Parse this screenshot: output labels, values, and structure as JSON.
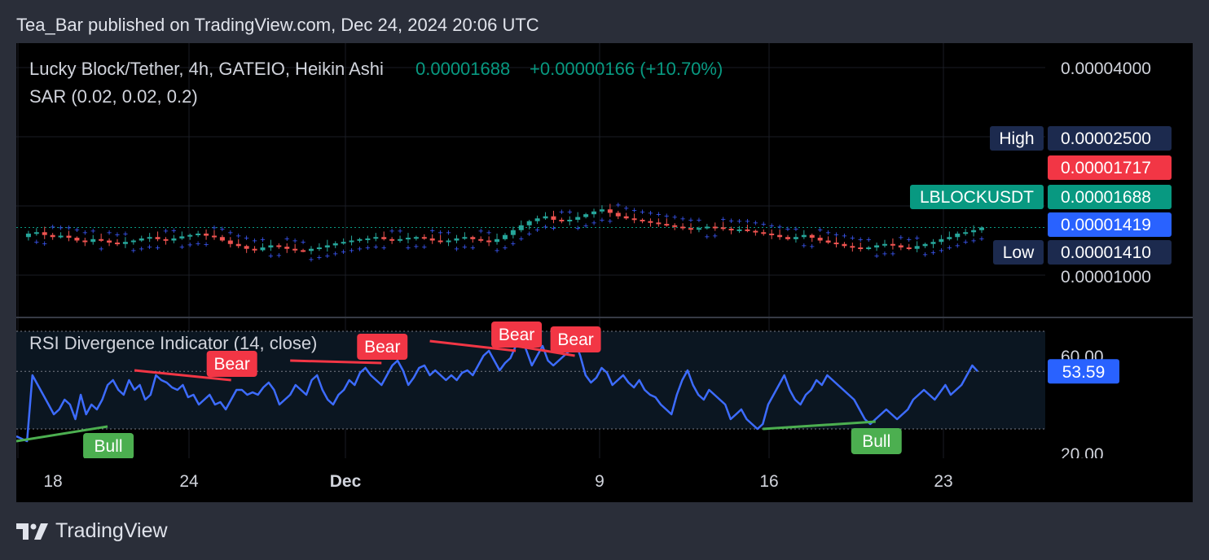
{
  "header": {
    "published": "Tea_Bar published on TradingView.com, Dec 24, 2024 20:06 UTC"
  },
  "footer": {
    "brand": "TradingView",
    "logo_icon": "tradingview-logo-icon"
  },
  "colors": {
    "up": "#26a69a",
    "down": "#ef5350",
    "sar": "#3d5afe",
    "rsi": "#3d6cff",
    "bull": "#4caf50",
    "bear": "#f23645",
    "navy": "#1c2a4e",
    "blue": "#2962ff",
    "teal": "#089981"
  },
  "chart_data": [
    {
      "type": "candlestick",
      "title": "Lucky Block/Tether, 4h, GATEIO, Heikin Ashi",
      "last_price": "0.00001688",
      "change": "+0.00000166 (+10.70%)",
      "indicator": "SAR (0.02, 0.02, 0.2)",
      "x_ticks": [
        "18",
        "24",
        "Dec",
        "9",
        "16",
        "23"
      ],
      "y_ticks": [
        "0.00004000",
        "0.00001000"
      ],
      "price_labels": [
        {
          "tag": "High",
          "value": "0.00002500"
        },
        {
          "tag": "",
          "value": "0.00001717"
        },
        {
          "tag": "LBLOCKUSDT",
          "value": "0.00001688"
        },
        {
          "tag": "",
          "value": "0.00001419"
        },
        {
          "tag": "Low",
          "value": "0.00001410"
        }
      ],
      "close_series": [
        1.55,
        1.6,
        1.62,
        1.58,
        1.55,
        1.57,
        1.54,
        1.5,
        1.48,
        1.52,
        1.5,
        1.47,
        1.45,
        1.48,
        1.5,
        1.53,
        1.55,
        1.52,
        1.5,
        1.53,
        1.56,
        1.58,
        1.6,
        1.57,
        1.55,
        1.5,
        1.45,
        1.42,
        1.38,
        1.36,
        1.4,
        1.43,
        1.41,
        1.38,
        1.36,
        1.35,
        1.38,
        1.4,
        1.43,
        1.46,
        1.48,
        1.5,
        1.52,
        1.53,
        1.55,
        1.52,
        1.5,
        1.52,
        1.54,
        1.55,
        1.53,
        1.5,
        1.48,
        1.5,
        1.53,
        1.55,
        1.52,
        1.5,
        1.48,
        1.52,
        1.58,
        1.65,
        1.72,
        1.78,
        1.82,
        1.85,
        1.8,
        1.78,
        1.8,
        1.84,
        1.88,
        1.92,
        1.95,
        1.9,
        1.85,
        1.82,
        1.8,
        1.78,
        1.76,
        1.74,
        1.72,
        1.7,
        1.68,
        1.66,
        1.68,
        1.7,
        1.69,
        1.67,
        1.65,
        1.66,
        1.64,
        1.62,
        1.6,
        1.58,
        1.55,
        1.52,
        1.55,
        1.58,
        1.54,
        1.5,
        1.47,
        1.45,
        1.42,
        1.4,
        1.38,
        1.4,
        1.43,
        1.45,
        1.43,
        1.4,
        1.38,
        1.42,
        1.45,
        1.48,
        1.52,
        1.55,
        1.6,
        1.62,
        1.65,
        1.688
      ]
    },
    {
      "type": "line",
      "title": "RSI Divergence Indicator (14, close)",
      "last_value": "53.59",
      "y_ticks": [
        "60.00",
        "20.00"
      ],
      "ylim": [
        18,
        72
      ],
      "levels": [
        70,
        53.59,
        30
      ],
      "values": [
        27,
        26,
        25,
        52,
        48,
        44,
        40,
        36,
        38,
        42,
        40,
        34,
        44,
        36,
        40,
        38,
        42,
        48,
        50,
        46,
        44,
        50,
        46,
        48,
        42,
        44,
        52,
        50,
        49,
        47,
        46,
        48,
        43,
        44,
        40,
        42,
        44,
        40,
        41,
        38,
        42,
        46,
        46,
        44,
        45,
        44,
        47,
        49,
        46,
        40,
        42,
        44,
        48,
        46,
        44,
        50,
        52,
        46,
        42,
        40,
        44,
        46,
        50,
        48,
        53,
        55,
        52,
        50,
        48,
        52,
        56,
        58,
        54,
        48,
        51,
        55,
        56,
        52,
        54,
        52,
        50,
        52,
        50,
        53,
        54,
        52,
        56,
        60,
        62,
        58,
        54,
        57,
        59,
        64,
        68,
        62,
        56,
        60,
        64,
        58,
        56,
        58,
        60,
        62,
        66,
        60,
        52,
        49,
        51,
        55,
        53,
        48,
        50,
        52,
        49,
        47,
        50,
        46,
        44,
        43,
        40,
        38,
        36,
        44,
        50,
        54,
        48,
        44,
        42,
        46,
        44,
        42,
        40,
        34,
        36,
        38,
        34,
        32,
        30,
        32,
        40,
        44,
        48,
        52,
        46,
        42,
        40,
        44,
        46,
        50,
        48,
        52,
        50,
        48,
        46,
        44,
        42,
        38,
        34,
        32,
        34,
        36,
        38,
        36,
        34,
        36,
        38,
        42,
        44,
        46,
        44,
        42,
        45,
        48,
        44,
        46,
        48,
        52,
        56,
        53.59
      ],
      "divergences": [
        {
          "kind": "bull",
          "label": "Bull",
          "from": [
            0,
            25
          ],
          "to": [
            17,
            31
          ]
        },
        {
          "kind": "bear",
          "label": "Bear",
          "from": [
            22,
            54
          ],
          "to": [
            40,
            50
          ]
        },
        {
          "kind": "bear",
          "label": "Bear",
          "from": [
            51,
            58
          ],
          "to": [
            68,
            57
          ]
        },
        {
          "kind": "bear",
          "label": "Bear",
          "from": [
            77,
            66
          ],
          "to": [
            93,
            62
          ]
        },
        {
          "kind": "bear",
          "label": "Bear",
          "from": [
            93,
            64
          ],
          "to": [
            104,
            60
          ]
        },
        {
          "kind": "bull",
          "label": "Bull",
          "from": [
            139,
            30
          ],
          "to": [
            160,
            33
          ]
        }
      ]
    }
  ]
}
